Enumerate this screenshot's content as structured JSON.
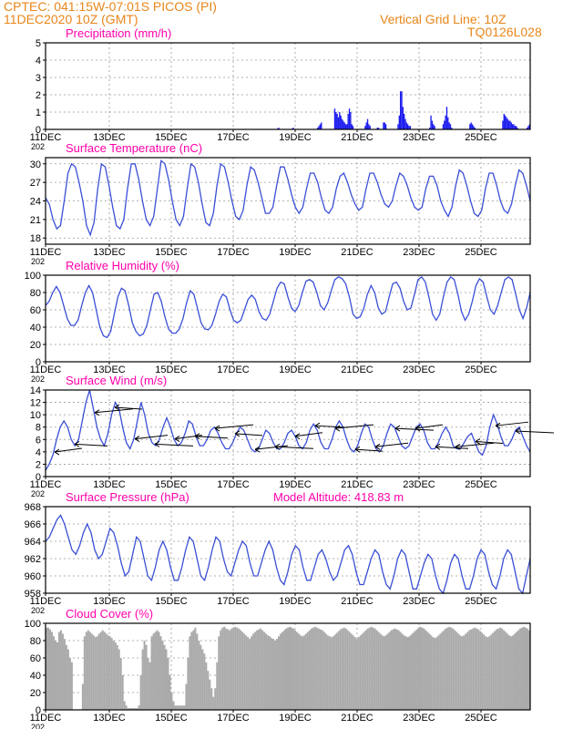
{
  "header": {
    "line1": "CPTEC:   041:15W-07:01S   PICOS (PI)",
    "line2": "11DEC2020 10Z (GMT)",
    "right1": "Vertical Grid Line: 10Z",
    "right2": "TQ0126L028"
  },
  "colors": {
    "header": "#e8861a",
    "title": "#ff00aa",
    "line": "#3a4fd6",
    "bar": "#1a1aee",
    "cloud": "#aaaaaa",
    "arrow": "#000000"
  },
  "date_labels": [
    "11DEC",
    "13DEC",
    "15DEC",
    "17DEC",
    "19DEC",
    "21DEC",
    "23DEC",
    "25DEC"
  ],
  "year_fragment": "202",
  "chart_data": [
    {
      "type": "bar",
      "title": "Precipitation (mm/h)",
      "ylim": [
        0,
        5
      ],
      "yticks": [
        0,
        1,
        2,
        3,
        4,
        5
      ],
      "values": [
        0,
        0,
        0,
        0,
        0,
        0,
        0,
        0,
        0,
        0,
        0,
        0,
        0,
        0,
        0,
        0,
        0,
        0,
        0,
        0,
        0,
        0,
        0,
        0,
        0,
        0,
        0,
        0,
        0,
        0,
        0,
        0,
        0,
        0,
        0,
        0,
        0,
        0,
        0,
        0,
        0,
        0,
        0,
        0,
        0,
        0,
        0,
        0,
        0,
        0,
        0,
        0,
        0,
        0,
        0,
        0,
        0,
        0,
        0,
        0,
        0,
        0,
        0,
        0,
        0,
        0,
        0,
        0,
        0,
        0,
        0,
        0,
        0,
        0,
        0,
        0,
        0,
        0,
        0,
        0,
        0,
        0,
        0,
        0,
        0,
        0,
        0,
        0,
        0,
        0,
        0,
        0,
        0,
        0,
        0,
        0,
        0,
        0,
        0,
        0,
        0,
        0,
        0,
        0,
        0,
        0,
        0,
        0,
        0,
        0,
        0,
        0,
        0,
        0,
        0,
        0,
        0,
        0,
        0,
        0,
        0,
        0,
        0,
        0,
        0,
        0,
        0,
        0,
        0,
        0,
        0,
        0,
        0,
        0,
        0,
        0,
        0,
        0,
        0,
        0,
        0,
        0,
        0,
        0,
        0,
        0,
        0,
        0,
        0,
        0,
        0,
        0,
        0,
        0,
        0,
        0,
        0,
        0,
        0,
        0,
        0,
        0,
        0,
        0,
        0,
        0,
        0,
        0,
        0,
        0,
        0,
        0,
        0,
        0,
        0,
        0,
        0,
        0,
        0,
        0,
        0,
        0,
        0,
        0,
        0,
        0,
        0,
        0,
        0,
        0,
        0.05,
        0.1,
        0,
        0,
        0,
        0,
        0,
        0,
        0,
        0,
        0,
        0,
        0.05,
        0.1,
        0,
        0,
        0,
        0,
        0,
        0,
        0,
        0,
        0,
        0,
        0,
        0,
        0,
        0,
        0,
        0,
        0,
        0,
        0,
        0.1,
        0.2,
        0.3,
        0.4,
        0,
        0,
        0,
        0,
        0,
        0,
        0,
        0,
        0,
        0,
        1.2,
        1.0,
        0.9,
        0.7,
        1.0,
        0.8,
        0.6,
        0.5,
        0.4,
        0.3,
        0.3,
        0.9,
        1.2,
        1.0,
        0.3,
        0.2,
        0,
        0,
        0,
        0,
        0,
        0,
        0,
        0,
        0,
        0.2,
        0.4,
        0.6,
        0.3,
        0.2,
        0,
        0,
        0,
        0,
        0,
        0.1,
        0.1,
        0,
        0,
        0,
        0.4,
        0.4,
        0.3,
        0,
        0,
        0,
        0,
        0,
        0,
        0,
        0,
        0,
        0.3,
        0.8,
        2.2,
        2.2,
        1.3,
        0.9,
        0.6,
        0.4,
        0.3,
        0.2,
        0.2,
        0,
        0,
        0,
        0,
        0,
        0,
        0,
        0,
        0,
        0,
        0,
        0,
        0,
        0,
        0,
        0.1,
        0.8,
        0.5,
        0.3,
        0.2,
        0,
        0,
        0,
        0,
        0,
        0,
        0.3,
        0.5,
        0.8,
        1.3,
        0.7,
        0.4,
        0.3,
        0.1,
        0,
        0,
        0,
        0,
        0,
        0,
        0,
        0,
        0,
        0,
        0,
        0,
        0,
        0,
        0.3,
        0.4,
        0.3,
        0.2,
        0.1,
        0,
        0,
        0,
        0,
        0,
        0,
        0,
        0,
        0,
        0,
        0,
        0,
        0,
        0,
        0,
        0,
        0,
        0,
        0,
        0,
        0,
        0,
        0.5,
        0.9,
        0.8,
        0.7,
        0.6,
        0.5,
        0.5,
        0.4,
        0.3,
        0.3,
        0.2,
        0.2,
        0.1,
        0,
        0,
        0,
        0,
        0,
        0,
        0,
        0.1,
        0.2,
        0.3
      ]
    },
    {
      "type": "line",
      "title": "Surface Temperature (nC)",
      "ylim": [
        17,
        31
      ],
      "yticks": [
        18,
        21,
        24,
        27,
        30
      ],
      "values": [
        24.5,
        23.5,
        21,
        19.5,
        20,
        24,
        28.5,
        30,
        29.5,
        27,
        24,
        20,
        18.5,
        20.5,
        26,
        30,
        29.5,
        26.5,
        23,
        20,
        19.5,
        21,
        26,
        30,
        30,
        27.5,
        24,
        21,
        20,
        21.5,
        26,
        30.5,
        30,
        27.5,
        24,
        21,
        20,
        21.5,
        26,
        30,
        29.5,
        27,
        23.5,
        20.5,
        20,
        22,
        26.5,
        30,
        29.5,
        27,
        24,
        21.5,
        21,
        22.5,
        26.5,
        29.5,
        29,
        27,
        24.5,
        22,
        22,
        23,
        26.5,
        29.5,
        29.5,
        27.5,
        25,
        23,
        22,
        23,
        26,
        28.5,
        28.5,
        27,
        24.5,
        22.5,
        22,
        23,
        26,
        28,
        28.5,
        27,
        25,
        23.5,
        22.5,
        23,
        26,
        28.5,
        28.5,
        27,
        25,
        23.5,
        23,
        24,
        26.5,
        28.5,
        28,
        26.5,
        24.5,
        23,
        22.5,
        23,
        26,
        28,
        28,
        26.5,
        24,
        22.5,
        21.5,
        23,
        26.5,
        29,
        28.5,
        26.5,
        24,
        22,
        21.5,
        22.5,
        26,
        28.5,
        28.5,
        26.5,
        24,
        22.5,
        22,
        23.5,
        26.5,
        29,
        28.5,
        26.5,
        24
      ],
      "xlim": [
        0,
        360
      ]
    },
    {
      "type": "line",
      "title": "Relative Humidity (%)",
      "ylim": [
        0,
        100
      ],
      "yticks": [
        0,
        20,
        40,
        60,
        80,
        100
      ],
      "values": [
        65,
        70,
        80,
        87,
        80,
        65,
        50,
        42,
        42,
        48,
        65,
        80,
        88,
        80,
        60,
        40,
        30,
        28,
        35,
        55,
        75,
        85,
        82,
        65,
        45,
        35,
        30,
        32,
        42,
        60,
        78,
        80,
        70,
        52,
        38,
        33,
        33,
        38,
        50,
        68,
        82,
        78,
        62,
        45,
        38,
        37,
        42,
        55,
        70,
        78,
        75,
        60,
        48,
        45,
        48,
        60,
        72,
        77,
        72,
        58,
        50,
        48,
        55,
        70,
        85,
        92,
        90,
        75,
        62,
        58,
        65,
        80,
        93,
        95,
        92,
        80,
        65,
        60,
        68,
        82,
        95,
        98,
        96,
        90,
        75,
        55,
        50,
        52,
        62,
        78,
        88,
        80,
        62,
        55,
        58,
        75,
        90,
        92,
        85,
        70,
        60,
        62,
        78,
        95,
        98,
        92,
        75,
        55,
        48,
        55,
        75,
        92,
        98,
        95,
        78,
        58,
        48,
        55,
        70,
        88,
        96,
        92,
        75,
        60,
        55,
        65,
        80,
        95,
        98,
        95,
        78,
        60,
        50,
        62,
        80
      ],
      "xlim": [
        0,
        360
      ]
    },
    {
      "type": "line",
      "title": "Surface Wind (m/s)",
      "ylim": [
        0,
        14
      ],
      "yticks": [
        0,
        2,
        4,
        6,
        8,
        10,
        12,
        14
      ],
      "values": [
        1,
        2,
        3.5,
        6,
        8,
        9,
        8,
        6,
        5,
        6,
        9,
        12,
        14,
        11,
        8,
        6,
        5,
        7,
        10,
        12,
        11,
        8,
        5.5,
        4.5,
        6,
        9,
        12,
        10,
        7,
        5.5,
        5,
        6,
        8,
        9.5,
        8,
        6,
        5,
        5.5,
        7,
        9,
        8.5,
        6.5,
        5,
        5,
        6,
        7.5,
        8,
        7,
        5.5,
        4.5,
        4.5,
        5.5,
        7,
        8,
        7.5,
        6,
        4.5,
        4,
        4.5,
        6,
        7.5,
        7,
        5.5,
        4.5,
        4.5,
        5.5,
        7,
        7.5,
        6.5,
        5,
        4.5,
        5.5,
        7.5,
        8.5,
        7.5,
        5.5,
        4.5,
        4.5,
        6,
        8,
        9,
        8,
        6,
        4.5,
        4,
        5,
        7,
        8.5,
        8,
        6,
        4.5,
        4,
        5,
        7,
        8.5,
        8,
        6.5,
        5,
        4.5,
        5,
        6.5,
        8,
        8.5,
        7.5,
        5.5,
        4.5,
        4.5,
        5.5,
        7,
        8,
        7,
        5,
        4.5,
        4.5,
        5.5,
        6.5,
        7,
        5.5,
        4,
        3.5,
        5,
        8,
        10,
        8.5,
        6.5,
        5,
        5,
        6,
        7.5,
        8,
        6.5,
        5,
        4
      ],
      "xlim": [
        0,
        360
      ]
    },
    {
      "type": "line",
      "title": "Surface Pressure (hPa)",
      "annotation": "Model Altitude: 418.83 m",
      "ylim": [
        958,
        968
      ],
      "yticks": [
        958,
        960,
        962,
        964,
        966,
        968
      ],
      "values": [
        964,
        964.5,
        965.5,
        966.5,
        967,
        966,
        964.5,
        963,
        962.5,
        963.5,
        965,
        966,
        965,
        963,
        962,
        962.5,
        964,
        965.5,
        965,
        963.5,
        961.5,
        960,
        960.5,
        962.5,
        964.5,
        964,
        962,
        960,
        959.5,
        961,
        963,
        964,
        963,
        961,
        959.5,
        959.5,
        961,
        963,
        964.5,
        964,
        962,
        960,
        959.5,
        961,
        963,
        964.5,
        964,
        962,
        960.5,
        960,
        961.5,
        963,
        964,
        963.5,
        961.5,
        960,
        960,
        961.5,
        963,
        964,
        963,
        961,
        959.5,
        959,
        960.5,
        962.5,
        963.5,
        963,
        961,
        959.5,
        959.5,
        961,
        962.5,
        963,
        962,
        960.5,
        959.5,
        960,
        961.5,
        963,
        963.5,
        962.5,
        960.5,
        959,
        959,
        960.5,
        962,
        963,
        962.5,
        960.5,
        959,
        958.5,
        960,
        962,
        963,
        962.5,
        960.5,
        958.5,
        958.5,
        960,
        961.5,
        962.5,
        962,
        960,
        958.5,
        958,
        959.5,
        961.5,
        962.5,
        962,
        960,
        958.5,
        958.5,
        960,
        962,
        963,
        962.5,
        960.5,
        959,
        958.5,
        960,
        962,
        963,
        962.5,
        960.5,
        958.5,
        958,
        960,
        962
      ],
      "xlim": [
        0,
        360
      ]
    },
    {
      "type": "bar",
      "title": "Cloud Cover (%)",
      "ylim": [
        0,
        100
      ],
      "yticks": [
        0,
        20,
        40,
        60,
        80,
        100
      ],
      "values": [
        95,
        95,
        93,
        90,
        85,
        80,
        78,
        90,
        92,
        88,
        82,
        75,
        70,
        60,
        55,
        0,
        0,
        0,
        0,
        0,
        30,
        85,
        90,
        92,
        90,
        88,
        86,
        84,
        85,
        88,
        90,
        92,
        90,
        88,
        86,
        85,
        83,
        80,
        78,
        75,
        70,
        60,
        40,
        10,
        5,
        2,
        2,
        2,
        2,
        2,
        2,
        5,
        40,
        70,
        80,
        75,
        60,
        55,
        85,
        88,
        90,
        92,
        90,
        85,
        80,
        75,
        70,
        60,
        40,
        20,
        10,
        5,
        5,
        5,
        5,
        5,
        5,
        30,
        60,
        85,
        90,
        92,
        95,
        88,
        80,
        75,
        70,
        65,
        55,
        45,
        35,
        25,
        15,
        25,
        55,
        85,
        92,
        95,
        96,
        94,
        93,
        92,
        94,
        95,
        96,
        95,
        94,
        92,
        90,
        88,
        86,
        84,
        82,
        85,
        88,
        90,
        92,
        93,
        94,
        92,
        90,
        88,
        86,
        85,
        83,
        82,
        80,
        82,
        85,
        88,
        90,
        92,
        94,
        95,
        96,
        95,
        94,
        92,
        90,
        88,
        86,
        85,
        86,
        88,
        90,
        92,
        94,
        95,
        96,
        95,
        94,
        93,
        92,
        90,
        88,
        86,
        85,
        84,
        85,
        87,
        89,
        91,
        93,
        94,
        95,
        94,
        92,
        90,
        88,
        86,
        84,
        82,
        84,
        86,
        88,
        90,
        92,
        94,
        95,
        96,
        95,
        94,
        92,
        90,
        88,
        86,
        85,
        86,
        88,
        90,
        92,
        93,
        94,
        93,
        92,
        90,
        88,
        86,
        85,
        84,
        85,
        87,
        89,
        91,
        93,
        95,
        96,
        95,
        94,
        92,
        90,
        88,
        86,
        84,
        83,
        84,
        86,
        88,
        90,
        92,
        94,
        95,
        96,
        95,
        94,
        92,
        90,
        88,
        86,
        85,
        86,
        88,
        90,
        92,
        93,
        94,
        95,
        94,
        93,
        91,
        89,
        87,
        85,
        84,
        85,
        87,
        89,
        91,
        93,
        94,
        95,
        94,
        92,
        90,
        88,
        86,
        85,
        86,
        88,
        90,
        92,
        94,
        95,
        96,
        95,
        94,
        92
      ]
    }
  ]
}
